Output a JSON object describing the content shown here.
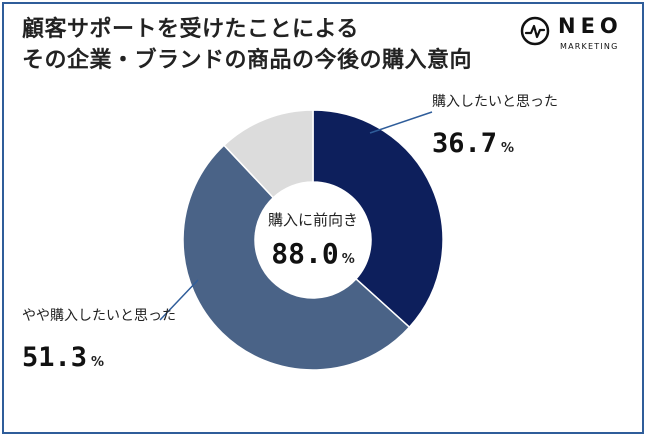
{
  "title_lines": [
    "顧客サポートを受けたことによる",
    "その企業・ブランドの商品の今後の購入意向"
  ],
  "logo": {
    "name": "NEO",
    "sub": "MARKETING",
    "icon": "pulse-circle-icon"
  },
  "colors": {
    "frame": "#2f5d9a",
    "slice1": "#0d1f5c",
    "slice2": "#4a6387",
    "slice3": "#dcdcdc"
  },
  "center": {
    "label": "購入に前向き",
    "value": "88.0",
    "unit": "%"
  },
  "chart_data": {
    "type": "pie",
    "donut": true,
    "slices": [
      {
        "label": "購入したいと思った",
        "value": 36.7,
        "display": "36.7",
        "color": "#0d1f5c"
      },
      {
        "label": "やや購入したいと思った",
        "value": 51.3,
        "display": "51.3",
        "color": "#4a6387"
      },
      {
        "label": "",
        "value": 12.0,
        "display": "",
        "color": "#dcdcdc"
      }
    ],
    "unit": "%"
  }
}
